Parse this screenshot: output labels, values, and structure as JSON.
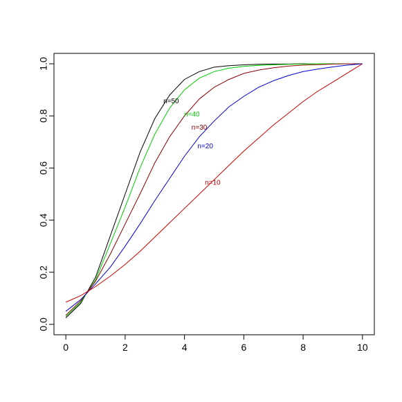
{
  "chart_data": {
    "type": "line",
    "title": "",
    "xlabel": "",
    "ylabel": "",
    "xlim": [
      -0.4,
      10.4
    ],
    "ylim": [
      -0.04,
      1.04
    ],
    "x_ticks": [
      "0",
      "2",
      "4",
      "6",
      "8",
      "10"
    ],
    "y_ticks": [
      "0.0",
      "0.2",
      "0.4",
      "0.6",
      "0.8",
      "1.0"
    ],
    "grid": false,
    "legend": "inline labels",
    "x": [
      0,
      0.5,
      1,
      1.5,
      2,
      2.5,
      3,
      3.5,
      4,
      4.5,
      5,
      5.5,
      6,
      6.5,
      7,
      7.5,
      8,
      8.5,
      9,
      9.5,
      10
    ],
    "series": [
      {
        "name": "n=50",
        "label_text": "n=50",
        "label_at": [
          3.55,
          0.855
        ],
        "color": "#000000",
        "values": [
          0.025,
          0.08,
          0.18,
          0.34,
          0.5,
          0.66,
          0.79,
          0.88,
          0.94,
          0.97,
          0.987,
          0.993,
          0.996,
          0.998,
          0.999,
          0.999,
          1.0,
          1.0,
          1.0,
          1.0,
          1.0
        ]
      },
      {
        "name": "n=40",
        "label_text": "n=40",
        "label_at": [
          4.25,
          0.805
        ],
        "color": "#00cc00",
        "values": [
          0.03,
          0.085,
          0.17,
          0.31,
          0.45,
          0.6,
          0.73,
          0.83,
          0.9,
          0.945,
          0.97,
          0.983,
          0.99,
          0.994,
          0.996,
          0.998,
          0.999,
          1.0,
          1.0,
          1.0,
          1.0
        ]
      },
      {
        "name": "n=30",
        "label_text": "n=30",
        "label_at": [
          4.5,
          0.755
        ],
        "color": "#8b0000",
        "values": [
          0.035,
          0.09,
          0.165,
          0.27,
          0.385,
          0.5,
          0.62,
          0.72,
          0.8,
          0.865,
          0.91,
          0.94,
          0.963,
          0.976,
          0.985,
          0.991,
          0.995,
          0.997,
          0.999,
          1.0,
          1.0
        ]
      },
      {
        "name": "n=20",
        "label_text": "n=20",
        "label_at": [
          4.7,
          0.683
        ],
        "color": "#0000cc",
        "values": [
          0.05,
          0.095,
          0.155,
          0.22,
          0.3,
          0.385,
          0.475,
          0.56,
          0.645,
          0.72,
          0.78,
          0.835,
          0.875,
          0.91,
          0.935,
          0.955,
          0.97,
          0.98,
          0.988,
          0.995,
          1.0
        ]
      },
      {
        "name": "n=10",
        "label_text": "n=10",
        "label_at": [
          4.95,
          0.543
        ],
        "color": "#cc0000",
        "values": [
          0.085,
          0.11,
          0.145,
          0.185,
          0.23,
          0.28,
          0.335,
          0.39,
          0.445,
          0.5,
          0.555,
          0.61,
          0.665,
          0.715,
          0.765,
          0.81,
          0.855,
          0.895,
          0.93,
          0.965,
          1.0
        ]
      }
    ]
  }
}
